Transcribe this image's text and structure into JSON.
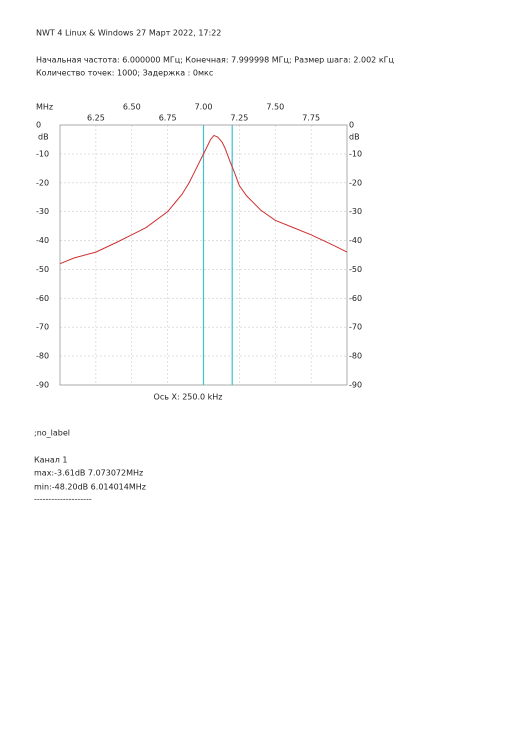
{
  "header": {
    "title": "NWT 4 Linux & Windows  27 Март 2022, 17:22",
    "params": "Начальная частота: 6.000000 МГц; Конечная: 7.999998 МГц; Размер шага: 2.002 кГц",
    "points": "Количество точек: 1000; Задержка :   0мкс"
  },
  "chart_data": {
    "type": "line",
    "x_unit": "MHz",
    "y_unit": "dB",
    "x_axis_label": "Ось X: 250.0 kHz",
    "xlim": [
      6,
      8
    ],
    "ylim": [
      -90,
      0
    ],
    "xticks": [
      6.25,
      {
        "value": 6.5,
        "label": "6.50"
      },
      6.75,
      {
        "value": 7,
        "label": "7.00"
      },
      7.25,
      {
        "value": 7.5,
        "label": "7.50"
      },
      7.75
    ],
    "yticks": [
      0,
      -10,
      -20,
      -30,
      -40,
      -50,
      -60,
      -70,
      -80,
      -90
    ],
    "grid": true,
    "markers": {
      "color": "#40c0d0",
      "x": [
        7.0,
        7.2
      ]
    },
    "series": [
      {
        "name": "Канал 1",
        "color": "#d03030",
        "x": [
          6.0,
          6.1,
          6.25,
          6.4,
          6.5,
          6.6,
          6.75,
          6.8,
          6.85,
          6.9,
          6.95,
          7.0,
          7.02,
          7.05,
          7.073,
          7.1,
          7.13,
          7.15,
          7.18,
          7.22,
          7.25,
          7.3,
          7.4,
          7.5,
          7.6,
          7.75,
          7.9,
          8.0
        ],
        "values": [
          -48,
          -46,
          -44,
          -40.5,
          -38,
          -35.5,
          -30,
          -27,
          -24,
          -20,
          -15,
          -10,
          -8,
          -5,
          -3.61,
          -4.2,
          -6,
          -8,
          -12,
          -17,
          -21,
          -24.5,
          -29.5,
          -33,
          -35,
          -38,
          -41.5,
          -44
        ]
      }
    ]
  },
  "footer": {
    "label": ";no_label",
    "channel": "Канал 1",
    "max": "max:-3.61dB 7.073072MHz",
    "min": "min:-48.20dB 6.014014MHz",
    "rule": "--------------------"
  }
}
